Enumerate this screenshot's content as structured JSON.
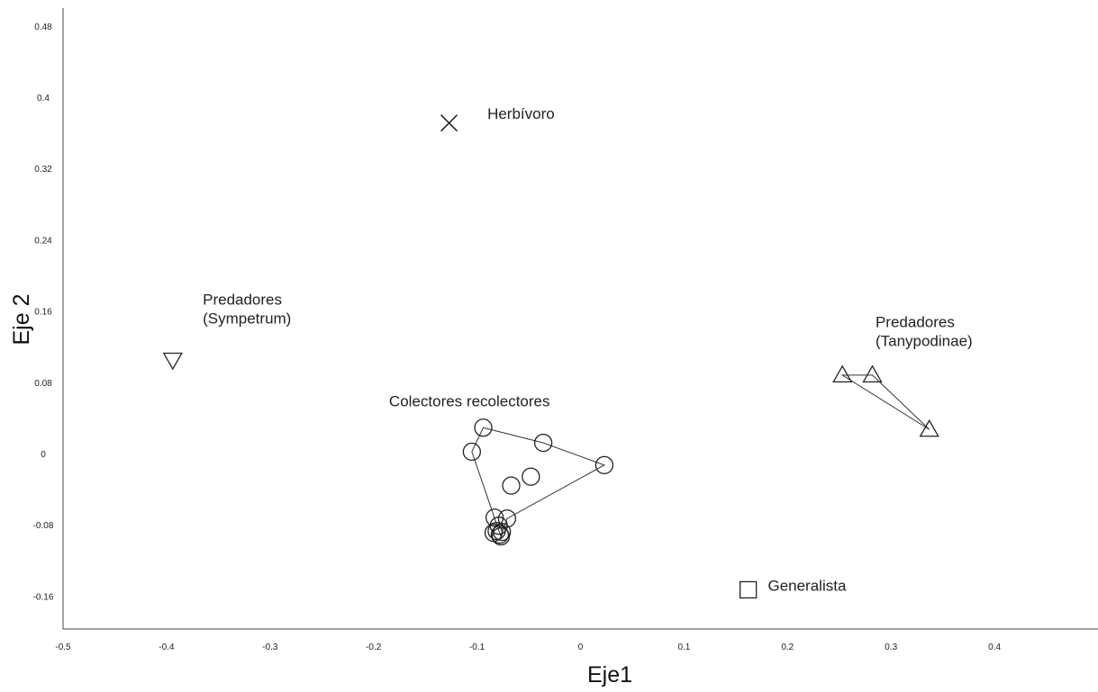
{
  "chart_data": {
    "type": "scatter",
    "xlabel": "Eje1",
    "ylabel": "Eje 2",
    "xlim": [
      -0.5,
      0.5
    ],
    "ylim": [
      -0.197,
      0.5
    ],
    "xticks": [
      -0.5,
      -0.4,
      -0.3,
      -0.2,
      -0.1,
      0,
      0.1,
      0.2,
      0.3,
      0.4
    ],
    "xtick_labels": [
      "-0.5",
      "-0.4",
      "-0.3",
      "-0.2",
      "-0.1",
      "0",
      "0.1",
      "0.2",
      "0.3",
      "0.4"
    ],
    "yticks": [
      -0.16,
      -0.08,
      0,
      0.08,
      0.16,
      0.24,
      0.32,
      0.4,
      0.48
    ],
    "ytick_labels": [
      "-0.16",
      "-0.08",
      "0",
      "0.08",
      "0.16",
      "0.24",
      "0.32",
      "0.4",
      "0.48"
    ],
    "grid": false,
    "series": [
      {
        "marker": "circle",
        "hull": true,
        "points": [
          [
            -0.094,
            0.029
          ],
          [
            -0.105,
            0.002
          ],
          [
            -0.036,
            0.012
          ],
          [
            0.023,
            -0.013
          ],
          [
            -0.048,
            -0.026
          ],
          [
            -0.067,
            -0.036
          ],
          [
            -0.083,
            -0.072
          ],
          [
            -0.071,
            -0.073
          ],
          [
            -0.079,
            -0.081
          ],
          [
            -0.081,
            -0.087
          ],
          [
            -0.076,
            -0.088
          ],
          [
            -0.084,
            -0.089
          ],
          [
            -0.078,
            -0.091
          ],
          [
            -0.077,
            -0.093
          ]
        ],
        "hull_order": [
          0,
          2,
          3,
          7,
          13,
          1
        ]
      },
      {
        "marker": "triangle-up",
        "hull": true,
        "points": [
          [
            0.253,
            0.088
          ],
          [
            0.282,
            0.088
          ],
          [
            0.337,
            0.027
          ]
        ],
        "hull_order": [
          0,
          1,
          2
        ]
      },
      {
        "marker": "triangle-down",
        "hull": false,
        "points": [
          [
            -0.394,
            0.105
          ]
        ]
      },
      {
        "marker": "x",
        "hull": false,
        "points": [
          [
            -0.127,
            0.371
          ]
        ]
      },
      {
        "marker": "square",
        "hull": false,
        "points": [
          [
            0.162,
            -0.153
          ]
        ]
      }
    ],
    "annotations": [
      {
        "lines": [
          "Herbívoro"
        ],
        "x": -0.09,
        "y": 0.376
      },
      {
        "lines": [
          "Predadores",
          "(Sympetrum)"
        ],
        "x": -0.365,
        "y": 0.167
      },
      {
        "lines": [
          "Predadores",
          "(Tanypodinae)"
        ],
        "x": 0.285,
        "y": 0.142
      },
      {
        "lines": [
          "Colectores recolectores"
        ],
        "x": -0.185,
        "y": 0.053
      },
      {
        "lines": [
          "Generalista"
        ],
        "x": 0.181,
        "y": -0.154
      }
    ]
  }
}
